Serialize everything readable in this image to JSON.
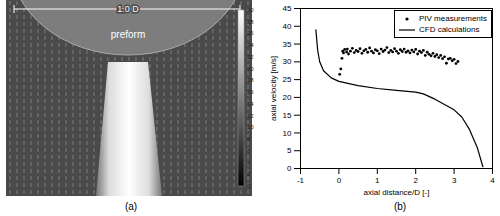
{
  "chart_data": {
    "type": "line",
    "caption": "(b)",
    "x_label": "axial distance/D [-]",
    "y_label": "axial velocity [m/s]",
    "xlim": [
      -1,
      4
    ],
    "xticks": [
      -1,
      0,
      1,
      2,
      3,
      4
    ],
    "ylim": [
      0,
      45
    ],
    "yticks": [
      0,
      5,
      10,
      15,
      20,
      25,
      30,
      35,
      40,
      45
    ],
    "legend": "top-right",
    "series": [
      {
        "name": "PIV measurements",
        "type": "scatter",
        "marker": "circle",
        "color": "#000000",
        "x": [
          0.02,
          0.05,
          0.08,
          0.1,
          0.12,
          0.15,
          0.2,
          0.22,
          0.25,
          0.3,
          0.35,
          0.4,
          0.45,
          0.5,
          0.55,
          0.6,
          0.65,
          0.7,
          0.75,
          0.8,
          0.85,
          0.9,
          0.95,
          1.0,
          1.05,
          1.1,
          1.15,
          1.2,
          1.25,
          1.3,
          1.35,
          1.4,
          1.45,
          1.5,
          1.55,
          1.6,
          1.65,
          1.7,
          1.75,
          1.8,
          1.85,
          1.9,
          1.95,
          2.0,
          2.05,
          2.1,
          2.15,
          2.2,
          2.25,
          2.3,
          2.35,
          2.4,
          2.45,
          2.5,
          2.55,
          2.6,
          2.65,
          2.7,
          2.75,
          2.8,
          2.85,
          2.9,
          2.95,
          3.0,
          3.05,
          3.1
        ],
        "values": [
          26.5,
          28,
          31,
          33,
          32.5,
          33.5,
          32.8,
          33.6,
          32.2,
          33,
          33.8,
          32.6,
          33.2,
          32.9,
          33.7,
          32.4,
          33.1,
          33.5,
          32.7,
          33.9,
          33,
          32.5,
          33.4,
          33.1,
          32.3,
          33.6,
          32.9,
          33.3,
          34,
          32.6,
          33.2,
          32.8,
          33.7,
          33,
          32.4,
          33.4,
          32.9,
          33.6,
          32.7,
          33.1,
          32.5,
          33.3,
          32.8,
          33.5,
          32.2,
          33,
          32.6,
          33.2,
          31.8,
          32.7,
          32.1,
          31.7,
          32.4,
          31.5,
          32,
          31.2,
          31.8,
          30.9,
          31.4,
          29.6,
          30.8,
          31,
          30.3,
          30.7,
          29.5,
          30.1
        ]
      },
      {
        "name": "CFD calculations",
        "type": "line",
        "line_style": "solid",
        "color": "#000000",
        "x": [
          -0.6,
          -0.55,
          -0.5,
          -0.4,
          -0.2,
          0,
          0.5,
          1,
          1.5,
          2,
          2.2,
          2.5,
          3,
          3.2,
          3.4,
          3.6,
          3.75
        ],
        "values": [
          39,
          33,
          30,
          27.5,
          25.5,
          24.5,
          23.3,
          22.5,
          22,
          21.5,
          21,
          19.5,
          16.5,
          14.5,
          11,
          6,
          0.5
        ]
      }
    ]
  },
  "image_panel": {
    "caption": "(a)",
    "width_label": "1.0 D",
    "object_label": "preform",
    "colorbar": {
      "range": [
        0,
        30
      ],
      "ticks": [
        0,
        2,
        4,
        6,
        8,
        10,
        12,
        14,
        16,
        18,
        20,
        22,
        24,
        26,
        28,
        30
      ]
    }
  }
}
